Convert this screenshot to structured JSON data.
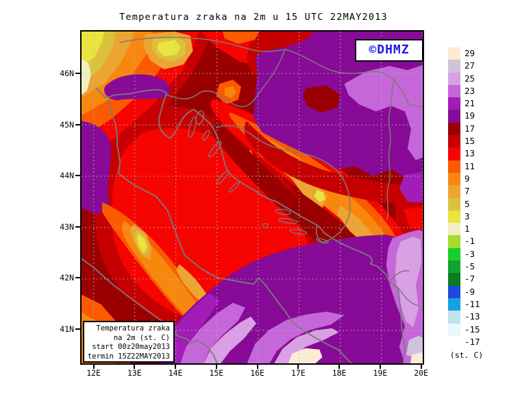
{
  "title": "Temperatura zraka na 2m u 15 UTC 22MAY2013",
  "logo": {
    "text": "©DHMZ",
    "color": "#1c1ce6"
  },
  "map": {
    "lat_labels": [
      "46N",
      "45N",
      "44N",
      "43N",
      "42N",
      "41N"
    ],
    "lon_labels": [
      "12E",
      "13E",
      "14E",
      "15E",
      "16E",
      "17E",
      "18E",
      "19E",
      "20E"
    ]
  },
  "info_box": {
    "lines": [
      "Temperatura zraka",
      "na 2m (st. C)",
      "start 00z20may2013",
      "termin 15Z22MAY2013"
    ]
  },
  "legend": {
    "unit": "(st. C)",
    "entries": [
      {
        "label": "29",
        "color": "#fcecd4"
      },
      {
        "label": "27",
        "color": "#cfc3dc"
      },
      {
        "label": "25",
        "color": "#d9a0e4"
      },
      {
        "label": "23",
        "color": "#c567d8"
      },
      {
        "label": "21",
        "color": "#a21cb8"
      },
      {
        "label": "19",
        "color": "#870b96"
      },
      {
        "label": "17",
        "color": "#9a0000"
      },
      {
        "label": "15",
        "color": "#c60000"
      },
      {
        "label": "13",
        "color": "#f50400"
      },
      {
        "label": "11",
        "color": "#fb5a00"
      },
      {
        "label": "9",
        "color": "#f8870e"
      },
      {
        "label": "7",
        "color": "#eca432"
      },
      {
        "label": "5",
        "color": "#dcc23c"
      },
      {
        "label": "3",
        "color": "#e9e43e"
      },
      {
        "label": "1",
        "color": "#eff0c2"
      },
      {
        "label": "-1",
        "color": "#a6da2c"
      },
      {
        "label": "-3",
        "color": "#17d02c"
      },
      {
        "label": "-5",
        "color": "#0fa42e"
      },
      {
        "label": "-7",
        "color": "#0a7d20"
      },
      {
        "label": "-9",
        "color": "#2247de"
      },
      {
        "label": "-11",
        "color": "#14a2e2"
      },
      {
        "label": "-13",
        "color": "#c2e2ec"
      },
      {
        "label": "-15",
        "color": "#e8f8fb"
      },
      {
        "label": "-17",
        "color": "#ffffff"
      }
    ]
  }
}
